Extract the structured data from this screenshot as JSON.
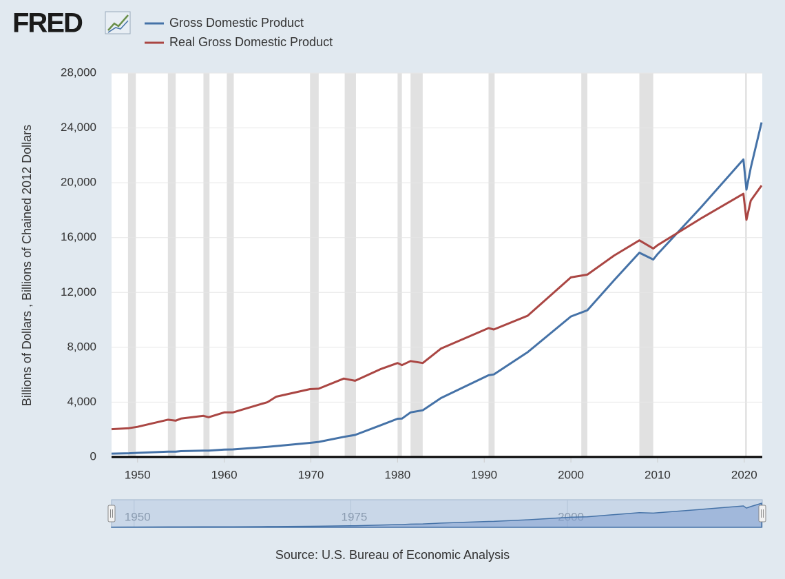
{
  "logo": "FRED",
  "chart_data": {
    "type": "line",
    "y_label": "Billions of Dollars , Billions of Chained 2012 Dollars",
    "source": "Source: U.S. Bureau of Economic Analysis",
    "x": [
      1947,
      1949,
      1950,
      1953.5,
      1954.4,
      1955,
      1957.6,
      1958.2,
      1960,
      1961,
      1965,
      1966,
      1969.9,
      1970.9,
      1973.8,
      1975.1,
      1978,
      1980,
      1980.5,
      1981.5,
      1982.9,
      1985,
      1990.5,
      1991.1,
      1995,
      2000,
      2001.9,
      2005,
      2007.9,
      2009.5,
      2010,
      2015,
      2019.9,
      2020.25,
      2020.75,
      2022
    ],
    "series": [
      {
        "name": "Gross Domestic Product",
        "color": "#4572a7",
        "values": [
          244,
          272,
          300,
          390,
          390,
          426,
          470,
          465,
          543,
          555,
          743,
          800,
          1030,
          1100,
          1470,
          1610,
          2300,
          2790,
          2800,
          3250,
          3410,
          4300,
          5960,
          6020,
          7640,
          10250,
          10700,
          12900,
          14900,
          14400,
          14800,
          18200,
          21700,
          19500,
          21100,
          24400
        ]
      },
      {
        "name": "Real Gross Domestic Product",
        "color": "#aa4643",
        "values": [
          2030,
          2100,
          2200,
          2720,
          2650,
          2800,
          3000,
          2900,
          3250,
          3250,
          4000,
          4400,
          4950,
          4980,
          5720,
          5560,
          6400,
          6850,
          6700,
          7000,
          6850,
          7900,
          9400,
          9300,
          10300,
          13100,
          13300,
          14700,
          15800,
          15200,
          15450,
          17400,
          19200,
          17300,
          18700,
          19800
        ]
      }
    ],
    "recessions": [
      [
        1948.9,
        1949.8
      ],
      [
        1953.5,
        1954.4
      ],
      [
        1957.6,
        1958.3
      ],
      [
        1960.3,
        1961.1
      ],
      [
        1969.9,
        1970.9
      ],
      [
        1973.9,
        1975.2
      ],
      [
        1980.0,
        1980.5
      ],
      [
        1981.5,
        1982.9
      ],
      [
        1990.5,
        1991.2
      ],
      [
        2001.2,
        2001.9
      ],
      [
        2007.9,
        2009.5
      ],
      [
        2020.1,
        2020.3
      ]
    ],
    "recession_color": "#e1e1e1",
    "xlim": [
      1947,
      2022.08
    ],
    "xticks": [
      1950,
      1960,
      1970,
      1980,
      1990,
      2000,
      2010,
      2020
    ],
    "ylim": [
      0,
      28000
    ],
    "yticks": [
      0,
      {
        "value": 4000,
        "label": "4,000"
      },
      {
        "value": 8000,
        "label": "8,000"
      },
      {
        "value": 12000,
        "label": "12,000"
      },
      {
        "value": 16000,
        "label": "16,000"
      },
      {
        "value": 20000,
        "label": "20,000"
      },
      {
        "value": 24000,
        "label": "24,000"
      },
      {
        "value": 28000,
        "label": "28,000"
      }
    ],
    "grid": true,
    "navigator": {
      "xticks": [
        1950,
        1975,
        2000
      ]
    }
  }
}
